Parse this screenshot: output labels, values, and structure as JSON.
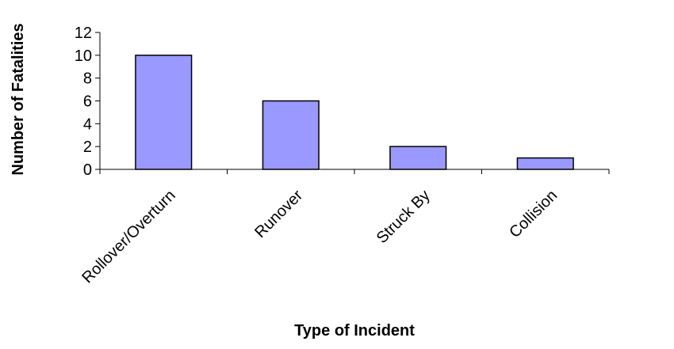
{
  "chart_data": {
    "type": "bar",
    "categories": [
      "Rollover/Overturn",
      "Runover",
      "Struck By",
      "Collision"
    ],
    "values": [
      10,
      6,
      2,
      1
    ],
    "title": "",
    "xlabel": "Type of Incident",
    "ylabel": "Number of Fatalities",
    "ylim": [
      0,
      12
    ],
    "yticks": [
      0,
      2,
      4,
      6,
      8,
      10,
      12
    ],
    "grid": false,
    "legend": "none",
    "bar_color": "#9999FF"
  }
}
